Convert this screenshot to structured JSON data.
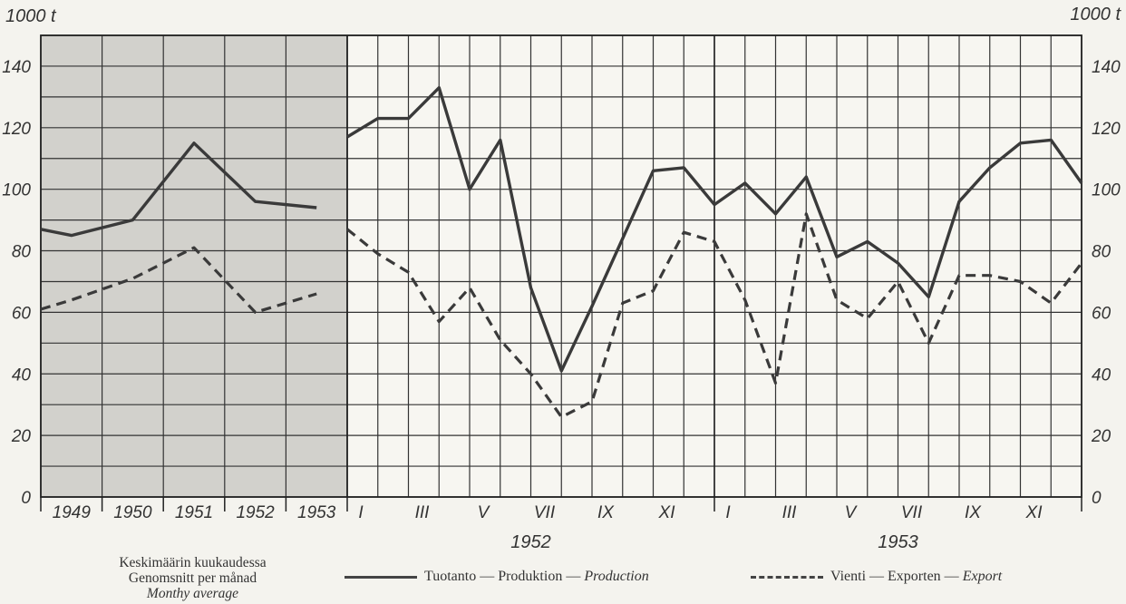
{
  "chart_data": {
    "type": "line",
    "unit_left": "1000 t",
    "unit_right": "1000 t",
    "ylim": [
      0,
      150
    ],
    "yticks": [
      "0",
      "20",
      "40",
      "60",
      "80",
      "100",
      "120",
      "140"
    ],
    "annual": {
      "categories": [
        "1949",
        "1950",
        "1951",
        "1952",
        "1953"
      ],
      "series": [
        {
          "key": "production",
          "values": [
            87,
            85,
            90,
            115,
            96,
            94
          ]
        },
        {
          "key": "export",
          "values": [
            61,
            64,
            71,
            81,
            60,
            66
          ]
        }
      ],
      "x_positions": [
        0,
        0.5,
        1.5,
        2.5,
        3.5,
        4.5
      ]
    },
    "monthly": {
      "month_labels_1952": [
        "I",
        "III",
        "V",
        "VII",
        "IX",
        "XI"
      ],
      "month_labels_1953": [
        "I",
        "III",
        "V",
        "VII",
        "IX",
        "XI"
      ],
      "year_labels": [
        "1952",
        "1953"
      ],
      "series": [
        {
          "key": "production",
          "values": [
            117,
            123,
            123,
            133,
            100,
            116,
            68,
            41,
            62,
            84,
            106,
            107,
            95,
            102,
            92,
            104,
            78,
            83,
            76,
            65,
            96,
            107,
            115,
            116,
            102
          ]
        },
        {
          "key": "export",
          "values": [
            87,
            79,
            73,
            57,
            68,
            51,
            40,
            26,
            31,
            63,
            67,
            86,
            83,
            64,
            37,
            92,
            64,
            58,
            70,
            50,
            72,
            72,
            70,
            63,
            76
          ]
        }
      ]
    },
    "note_lines": [
      "Keskimäärin kuukaudessa",
      "Genomsnitt per månad",
      "Monthy average"
    ],
    "legend": {
      "production": {
        "plain": "Tuotanto — Produktion — ",
        "italic": "Production"
      },
      "export": {
        "plain": "Vienti — Exporten — ",
        "italic": "Export"
      }
    },
    "colors": {
      "line": "#3a3a3a",
      "grid": "#333333",
      "shade": "#d2d1cc"
    }
  }
}
